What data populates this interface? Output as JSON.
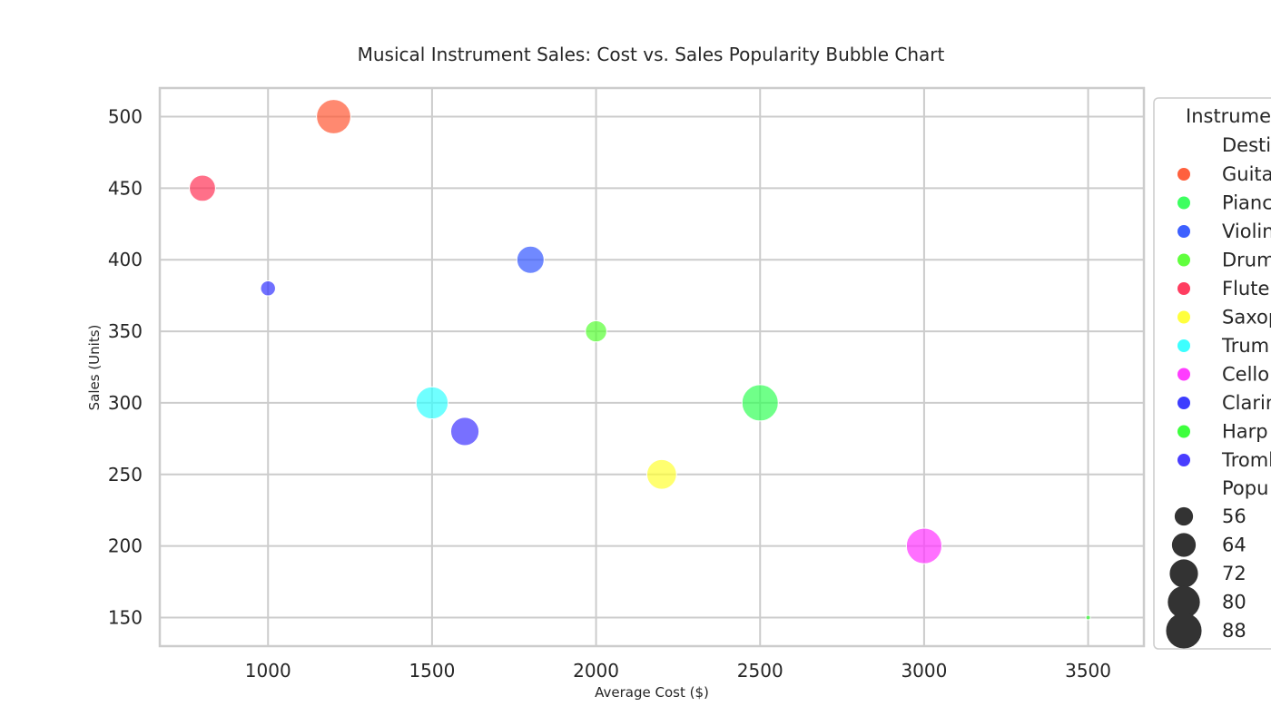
{
  "chart_data": {
    "type": "scatter",
    "title": "Musical Instrument Sales: Cost vs. Sales Popularity Bubble Chart",
    "xlabel": "Average Cost ($)",
    "ylabel": "Sales (Units)",
    "xlim": [
      670,
      3670
    ],
    "ylim": [
      130,
      520
    ],
    "x_ticks": [
      1000,
      1500,
      2000,
      2500,
      3000,
      3500
    ],
    "y_ticks": [
      150,
      200,
      250,
      300,
      350,
      400,
      450,
      500
    ],
    "grid": true,
    "legend": {
      "placement": "right, outside plot (clipped)",
      "title": "Instrume",
      "hue_title": "Destir",
      "size_title": "Popu",
      "hue_entries": [
        {
          "label": "Guita",
          "color": "#ff5733"
        },
        {
          "label": "Pianc",
          "color": "#33ff57"
        },
        {
          "label": "Violin",
          "color": "#3357ff"
        },
        {
          "label": "Drum",
          "color": "#57ff33"
        },
        {
          "label": "Flute",
          "color": "#ff3357"
        },
        {
          "label": "Saxop",
          "color": "#ffff33"
        },
        {
          "label": "Trump",
          "color": "#33ffff"
        },
        {
          "label": "Cello",
          "color": "#ff33ff"
        },
        {
          "label": "Clarin",
          "color": "#3333ff"
        },
        {
          "label": "Harp",
          "color": "#33ff33"
        },
        {
          "label": "Tromb",
          "color": "#3f33ff"
        }
      ],
      "size_entries": [
        {
          "label": "56",
          "value": 56
        },
        {
          "label": "64",
          "value": 64
        },
        {
          "label": "72",
          "value": 72
        },
        {
          "label": "80",
          "value": 80
        },
        {
          "label": "88",
          "value": 88
        }
      ]
    },
    "points": [
      {
        "x": 1200,
        "y": 500,
        "popularity": 85,
        "color": "#ff5733"
      },
      {
        "x": 2500,
        "y": 300,
        "popularity": 90,
        "color": "#33ff57"
      },
      {
        "x": 1800,
        "y": 400,
        "popularity": 70,
        "color": "#3357ff"
      },
      {
        "x": 2000,
        "y": 350,
        "popularity": 60,
        "color": "#57ff33"
      },
      {
        "x": 800,
        "y": 450,
        "popularity": 68,
        "color": "#ff3357"
      },
      {
        "x": 2200,
        "y": 250,
        "popularity": 75,
        "color": "#ffff33"
      },
      {
        "x": 1500,
        "y": 300,
        "popularity": 80,
        "color": "#33ffff"
      },
      {
        "x": 3000,
        "y": 200,
        "popularity": 88,
        "color": "#ff33ff"
      },
      {
        "x": 1000,
        "y": 380,
        "popularity": 52,
        "color": "#3333ff"
      },
      {
        "x": 3500,
        "y": 150,
        "popularity": 45,
        "color": "#33ff33"
      },
      {
        "x": 1600,
        "y": 280,
        "popularity": 72,
        "color": "#3f33ff"
      }
    ]
  }
}
